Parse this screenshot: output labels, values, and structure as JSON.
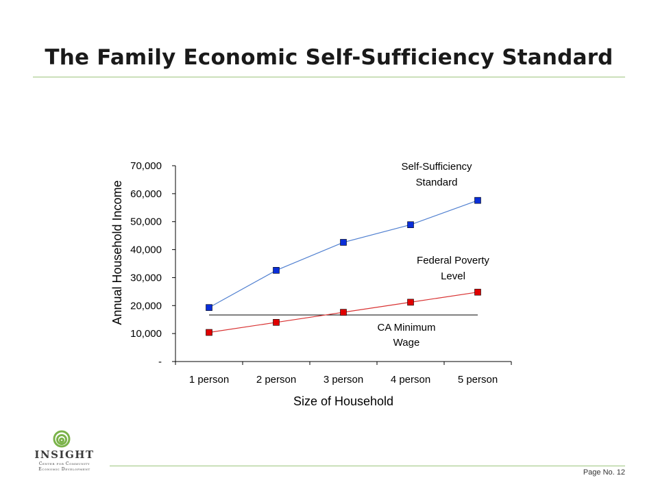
{
  "title": "The Family Economic Self-Sufficiency Standard",
  "footer": {
    "page_label": "Page No. 12"
  },
  "logo": {
    "name": "INSIGHT",
    "sub1": "Center for Community",
    "sub2": "Economic Development",
    "color": "#3a3a3a",
    "swirl_color": "#7bb34a"
  },
  "chart_data": {
    "type": "line",
    "xlabel": "Size of Household",
    "ylabel": "Annual Household Income",
    "categories": [
      "1 person",
      "2 person",
      "3 person",
      "4 person",
      "5 person"
    ],
    "ylim": [
      0,
      70000
    ],
    "y_ticks": [
      0,
      10000,
      20000,
      30000,
      40000,
      50000,
      60000,
      70000
    ],
    "y_tick_labels": [
      "-",
      "10,000",
      "20,000",
      "30,000",
      "40,000",
      "50,000",
      "60,000",
      "70,000"
    ],
    "grid": false,
    "legend": "none",
    "series": [
      {
        "name_lines": [
          "Self-Sufficiency",
          "Standard"
        ],
        "values": [
          19300,
          32600,
          42600,
          48900,
          57600
        ],
        "line_color": "#4f7fd0",
        "marker_color": "#0a2ed8",
        "marker": "square"
      },
      {
        "name_lines": [
          "Federal Poverty",
          "Level"
        ],
        "values": [
          10400,
          14000,
          17600,
          21200,
          24800
        ],
        "line_color": "#d83030",
        "marker_color": "#e00000",
        "marker": "square"
      }
    ],
    "reference_lines": [
      {
        "name_lines": [
          "CA Minimum",
          "Wage"
        ],
        "value": 16640,
        "x_from": 0,
        "x_to": 4,
        "color": "#000000"
      }
    ]
  }
}
